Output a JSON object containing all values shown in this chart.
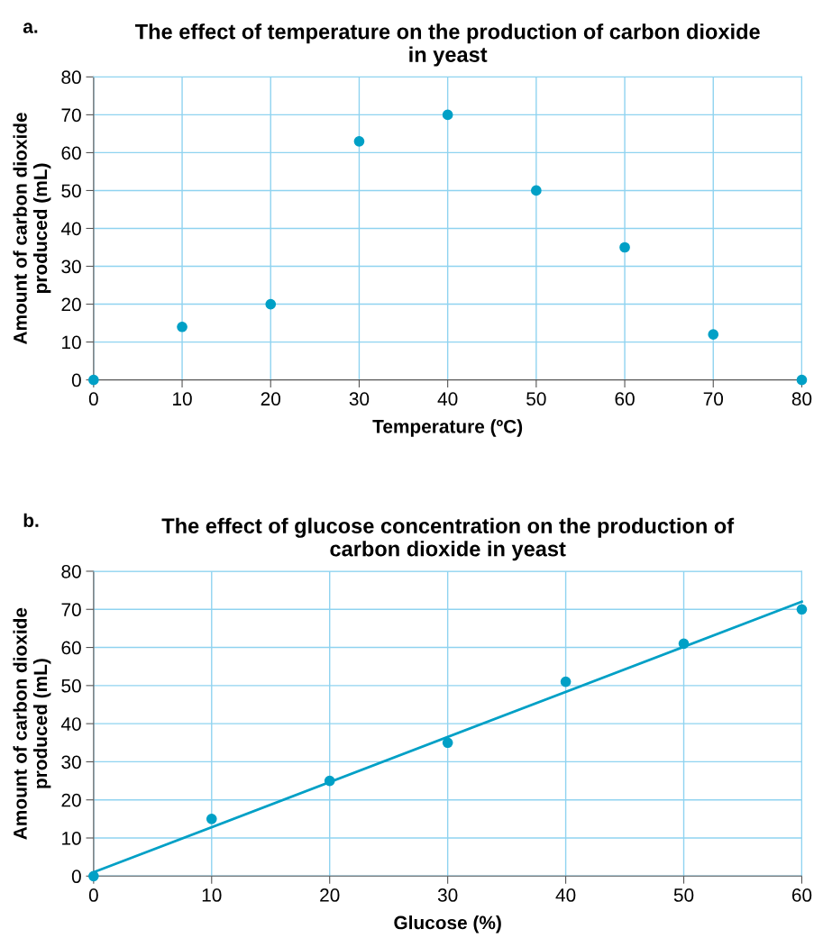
{
  "chart_data": [
    {
      "type": "scatter",
      "title": "The effect of temperature on the production of carbon dioxide\nin yeast",
      "xlabel": "Temperature (ºC)",
      "ylabel": "Amount of carbon dioxide\nproduced (mL)",
      "annotations": [
        "a."
      ],
      "x": [
        0,
        10,
        20,
        30,
        40,
        50,
        60,
        70,
        80
      ],
      "values": [
        0,
        14,
        20,
        63,
        70,
        50,
        35,
        12,
        0
      ],
      "color": "#00a0c6",
      "marker": "circle",
      "xlim": [
        0,
        80
      ],
      "xticks": [
        0,
        10,
        20,
        30,
        40,
        50,
        60,
        70,
        80
      ],
      "ylim": [
        0,
        80
      ],
      "yticks": [
        0,
        10,
        20,
        30,
        40,
        50,
        60,
        70,
        80
      ],
      "grid": true
    },
    {
      "type": "scatter",
      "title": "The effect of glucose concentration on the production of\ncarbon dioxide in yeast",
      "xlabel": "Glucose (%)",
      "ylabel": "Amount of carbon dioxide\nproduced (mL)",
      "annotations": [
        "b."
      ],
      "series": [
        {
          "type": "scatter",
          "color": "#00a0c6",
          "marker": "circle",
          "x": [
            0,
            10,
            20,
            30,
            40,
            50,
            60
          ],
          "values": [
            0,
            15,
            25,
            35,
            51,
            61,
            70
          ]
        },
        {
          "type": "line",
          "color": "#00a0c6",
          "marker": "none",
          "x": [
            0,
            60
          ],
          "values": [
            1,
            72
          ]
        }
      ],
      "xlim": [
        0,
        60
      ],
      "xticks": [
        0,
        10,
        20,
        30,
        40,
        50,
        60
      ],
      "ylim": [
        0,
        80
      ],
      "yticks": [
        0,
        10,
        20,
        30,
        40,
        50,
        60,
        70,
        80
      ],
      "grid": true
    }
  ]
}
